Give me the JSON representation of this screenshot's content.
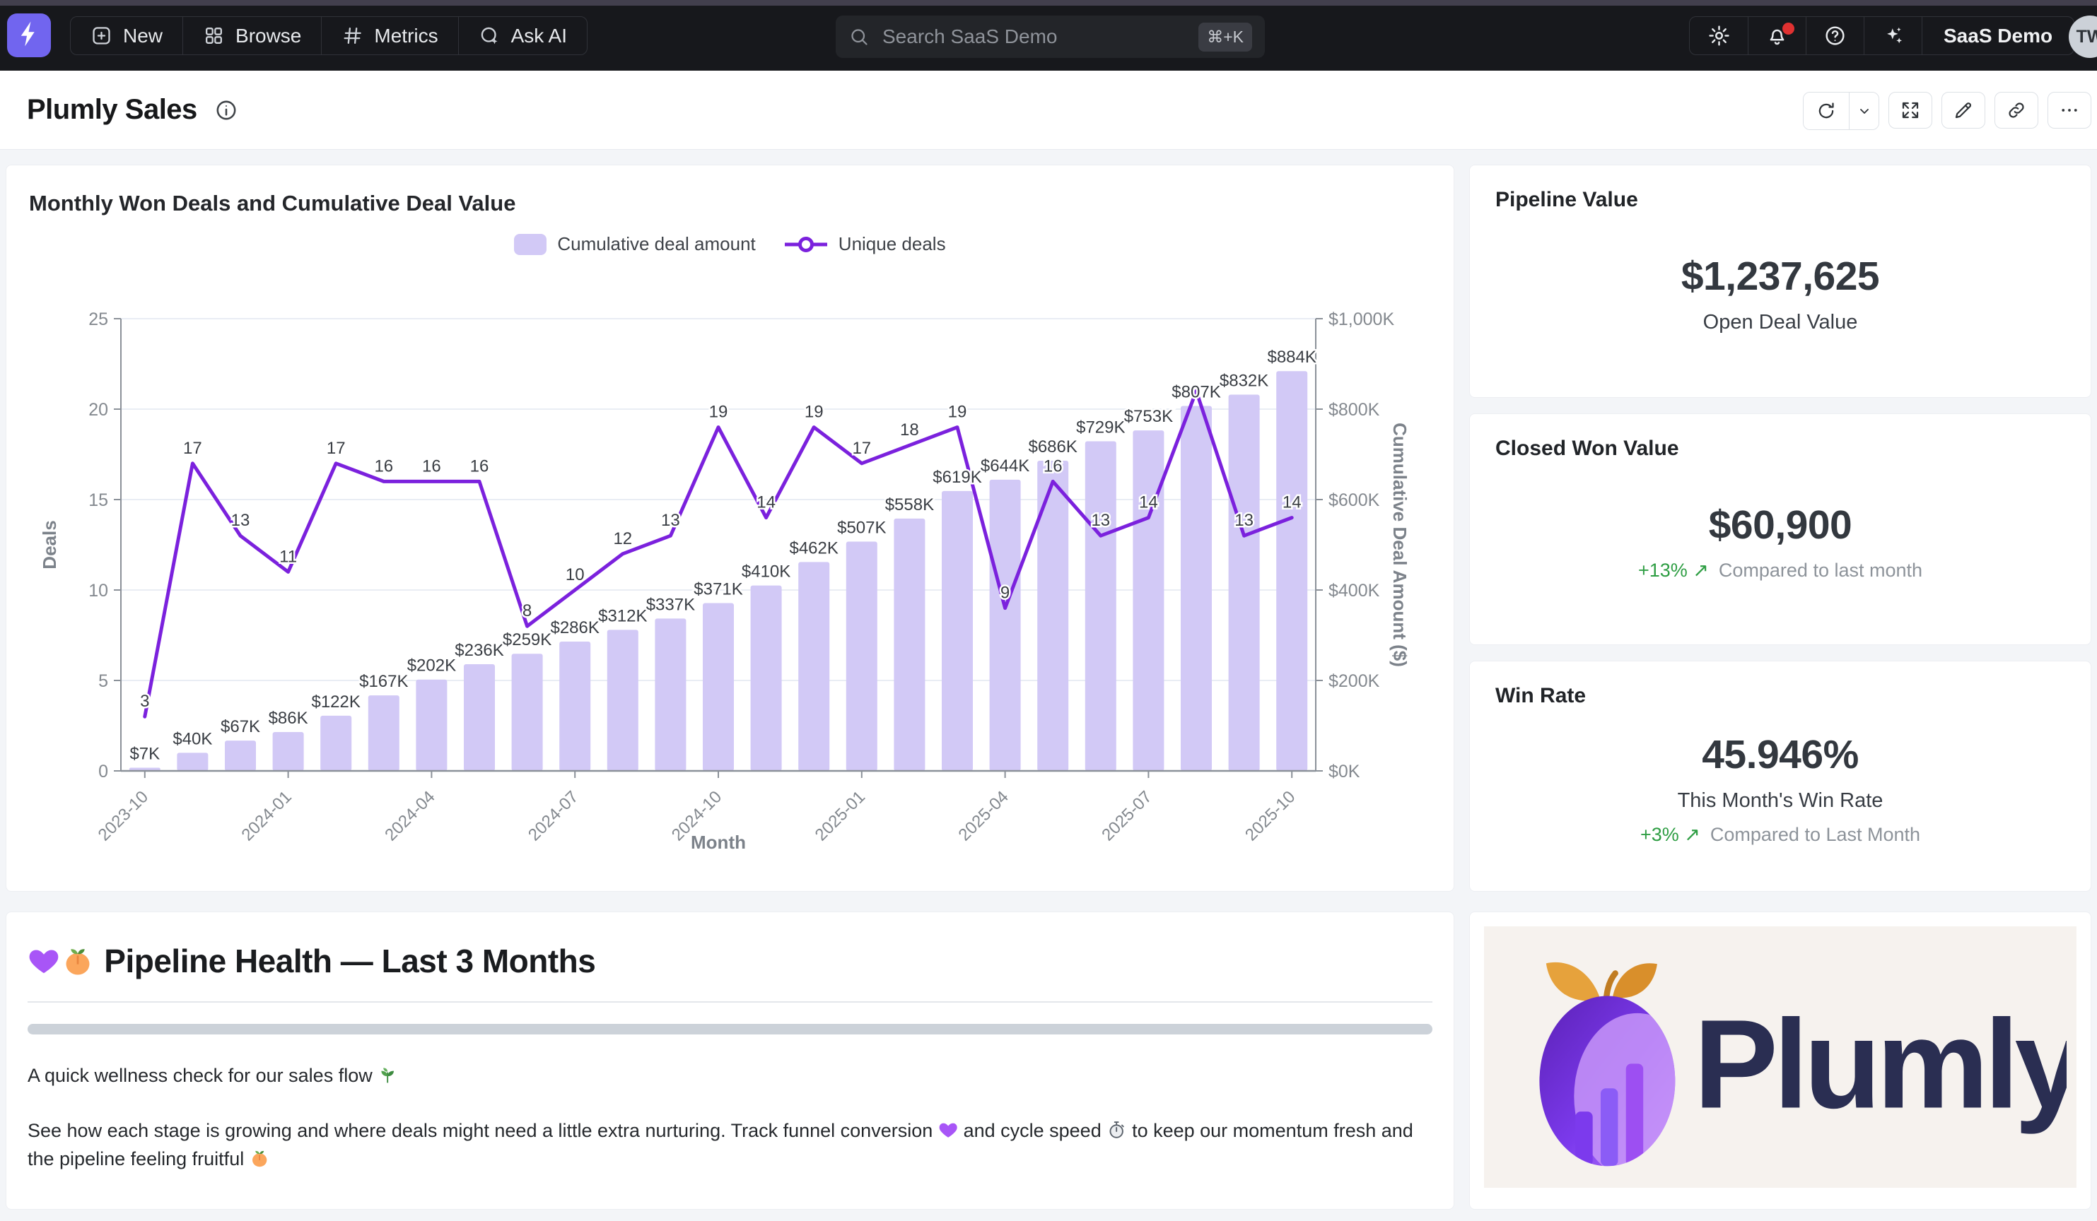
{
  "navbar": {
    "logo_icon": "lightning-bolt",
    "items": [
      {
        "label": "New",
        "icon": "plus-square"
      },
      {
        "label": "Browse",
        "icon": "grid"
      },
      {
        "label": "Metrics",
        "icon": "hash"
      },
      {
        "label": "Ask AI",
        "icon": "ask-ai"
      }
    ],
    "search": {
      "placeholder": "Search SaaS Demo",
      "shortcut": "⌘+K"
    },
    "right": {
      "icons": [
        {
          "name": "gear",
          "badge": false
        },
        {
          "name": "bell",
          "badge": true
        },
        {
          "name": "help",
          "badge": false
        },
        {
          "name": "sparkles",
          "badge": false
        }
      ],
      "org": "SaaS Demo",
      "avatar": "TW"
    }
  },
  "header": {
    "title": "Plumly Sales",
    "toolbar": [
      "refresh",
      "refresh-options",
      "expand",
      "edit",
      "link",
      "dots"
    ]
  },
  "chart_data": {
    "type": "bar",
    "title": "Monthly Won Deals and Cumulative Deal Value",
    "xlabel": "Month",
    "x": [
      "2023-10",
      "2023-11",
      "2023-12",
      "2024-01",
      "2024-02",
      "2024-03",
      "2024-04",
      "2024-05",
      "2024-06",
      "2024-07",
      "2024-08",
      "2024-09",
      "2024-10",
      "2024-11",
      "2024-12",
      "2025-01",
      "2025-02",
      "2025-03",
      "2025-04",
      "2025-05",
      "2025-06",
      "2025-07",
      "2025-08",
      "2025-09",
      "2025-10"
    ],
    "x_tick_labels": [
      "2023-10",
      "2024-01",
      "2024-04",
      "2024-07",
      "2024-10",
      "2025-01",
      "2025-04",
      "2025-07",
      "2025-10"
    ],
    "x_tick_step": 3,
    "series": [
      {
        "name": "Cumulative deal amount",
        "kind": "bar",
        "axis": "right",
        "unit": "$K",
        "values": [
          7,
          40,
          67,
          86,
          122,
          167,
          202,
          236,
          259,
          286,
          312,
          337,
          371,
          410,
          462,
          507,
          558,
          619,
          644,
          686,
          729,
          753,
          807,
          832,
          884
        ],
        "labels": [
          "$7K",
          "$40K",
          "$67K",
          "$86K",
          "$122K",
          "$167K",
          "$202K",
          "$236K",
          "$259K",
          "$286K",
          "$312K",
          "$337K",
          "$371K",
          "$410K",
          "$462K",
          "$507K",
          "$558K",
          "$619K",
          "$644K",
          "$686K",
          "$729K",
          "$753K",
          "$807K",
          "$832K",
          "$884K"
        ]
      },
      {
        "name": "Unique deals",
        "kind": "line",
        "axis": "left",
        "values": [
          3,
          17,
          13,
          11,
          17,
          16,
          16,
          16,
          8,
          10,
          12,
          13,
          19,
          14,
          19,
          17,
          18,
          19,
          9,
          16,
          13,
          14,
          21,
          13,
          14
        ],
        "labels": [
          "3",
          "17",
          "13",
          "11",
          "17",
          "16",
          "16",
          "16",
          "8",
          "10",
          "12",
          "13",
          "19",
          "14",
          "19",
          "17",
          "18",
          "19",
          "9",
          "16",
          "13",
          "14",
          "",
          "13",
          "14"
        ]
      }
    ],
    "left_axis": {
      "label": "Deals",
      "ticks": [
        0,
        5,
        10,
        15,
        20,
        25
      ],
      "range": [
        0,
        25
      ]
    },
    "right_axis": {
      "label": "Cumulative Deal Amount ($)",
      "tick_labels": [
        "$0K",
        "$200K",
        "$400K",
        "$600K",
        "$800K",
        "$1,000K"
      ],
      "tick_values": [
        0,
        200,
        400,
        600,
        800,
        1000
      ],
      "range": [
        0,
        1000
      ]
    },
    "legend_position": "top",
    "grid": true,
    "colors": {
      "bar": "#d2c9f6",
      "line": "#7b21dd"
    }
  },
  "kpis": [
    {
      "title": "Pipeline Value",
      "value": "$1,237,625",
      "subtitle": "Open Deal Value",
      "delta": "",
      "compare": ""
    },
    {
      "title": "Closed Won Value",
      "value": "$60,900",
      "subtitle": "",
      "delta": "+13% ↗",
      "compare": "Compared to last month"
    },
    {
      "title": "Win Rate",
      "value": "45.946%",
      "subtitle": "This Month's Win Rate",
      "delta": "+3% ↗",
      "compare": "Compared to Last Month"
    }
  ],
  "pipeline_health": {
    "heading": "💜🍑 Pipeline Health — Last 3 Months",
    "paragraphs": [
      "A quick wellness check for our sales flow 🌿",
      "See how each stage is growing and where deals might need a little extra nurturing. Track funnel conversion 💜 and cycle speed ⏱️ to keep our momentum fresh and the pipeline feeling fruitful 🍑"
    ]
  },
  "brand": {
    "name": "Plumly"
  }
}
